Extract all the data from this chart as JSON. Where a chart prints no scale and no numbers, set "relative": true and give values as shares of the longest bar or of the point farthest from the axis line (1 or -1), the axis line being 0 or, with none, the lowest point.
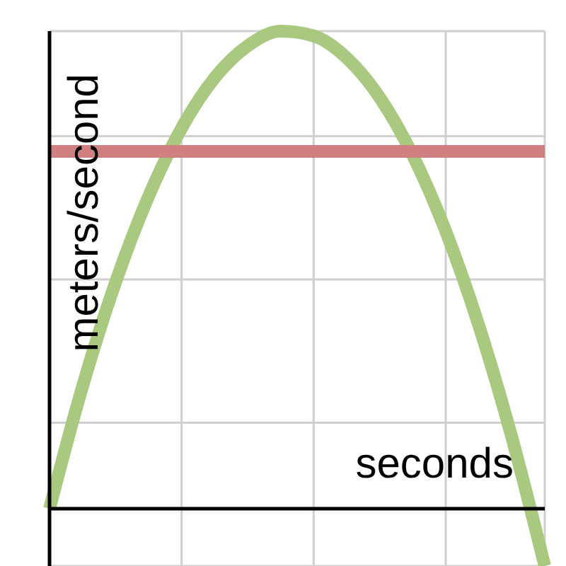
{
  "chart_data": {
    "type": "line",
    "xlabel": "seconds",
    "ylabel": "meters/second",
    "relative": true,
    "grid": true,
    "marker": "none",
    "line_style": "solid",
    "categories": [
      null,
      null,
      null,
      null,
      null,
      null,
      null,
      null,
      null,
      null,
      null,
      null,
      null,
      null,
      null,
      null
    ],
    "series": [
      {
        "color": "#a8c97f",
        "values": [
          0,
          0.256,
          0.474,
          0.654,
          0.797,
          0.902,
          0.969,
          1,
          0.99,
          0.944,
          0.861,
          0.74,
          0.581,
          0.384,
          0.15,
          -0.12
        ]
      },
      {
        "color": "#d08080",
        "values": [
          0.748,
          0.748,
          0.748,
          0.748,
          0.748,
          0.748,
          0.748,
          0.748,
          0.748,
          0.748,
          0.748,
          0.748,
          0.748,
          0.748,
          0.748,
          0.748
        ]
      }
    ]
  }
}
